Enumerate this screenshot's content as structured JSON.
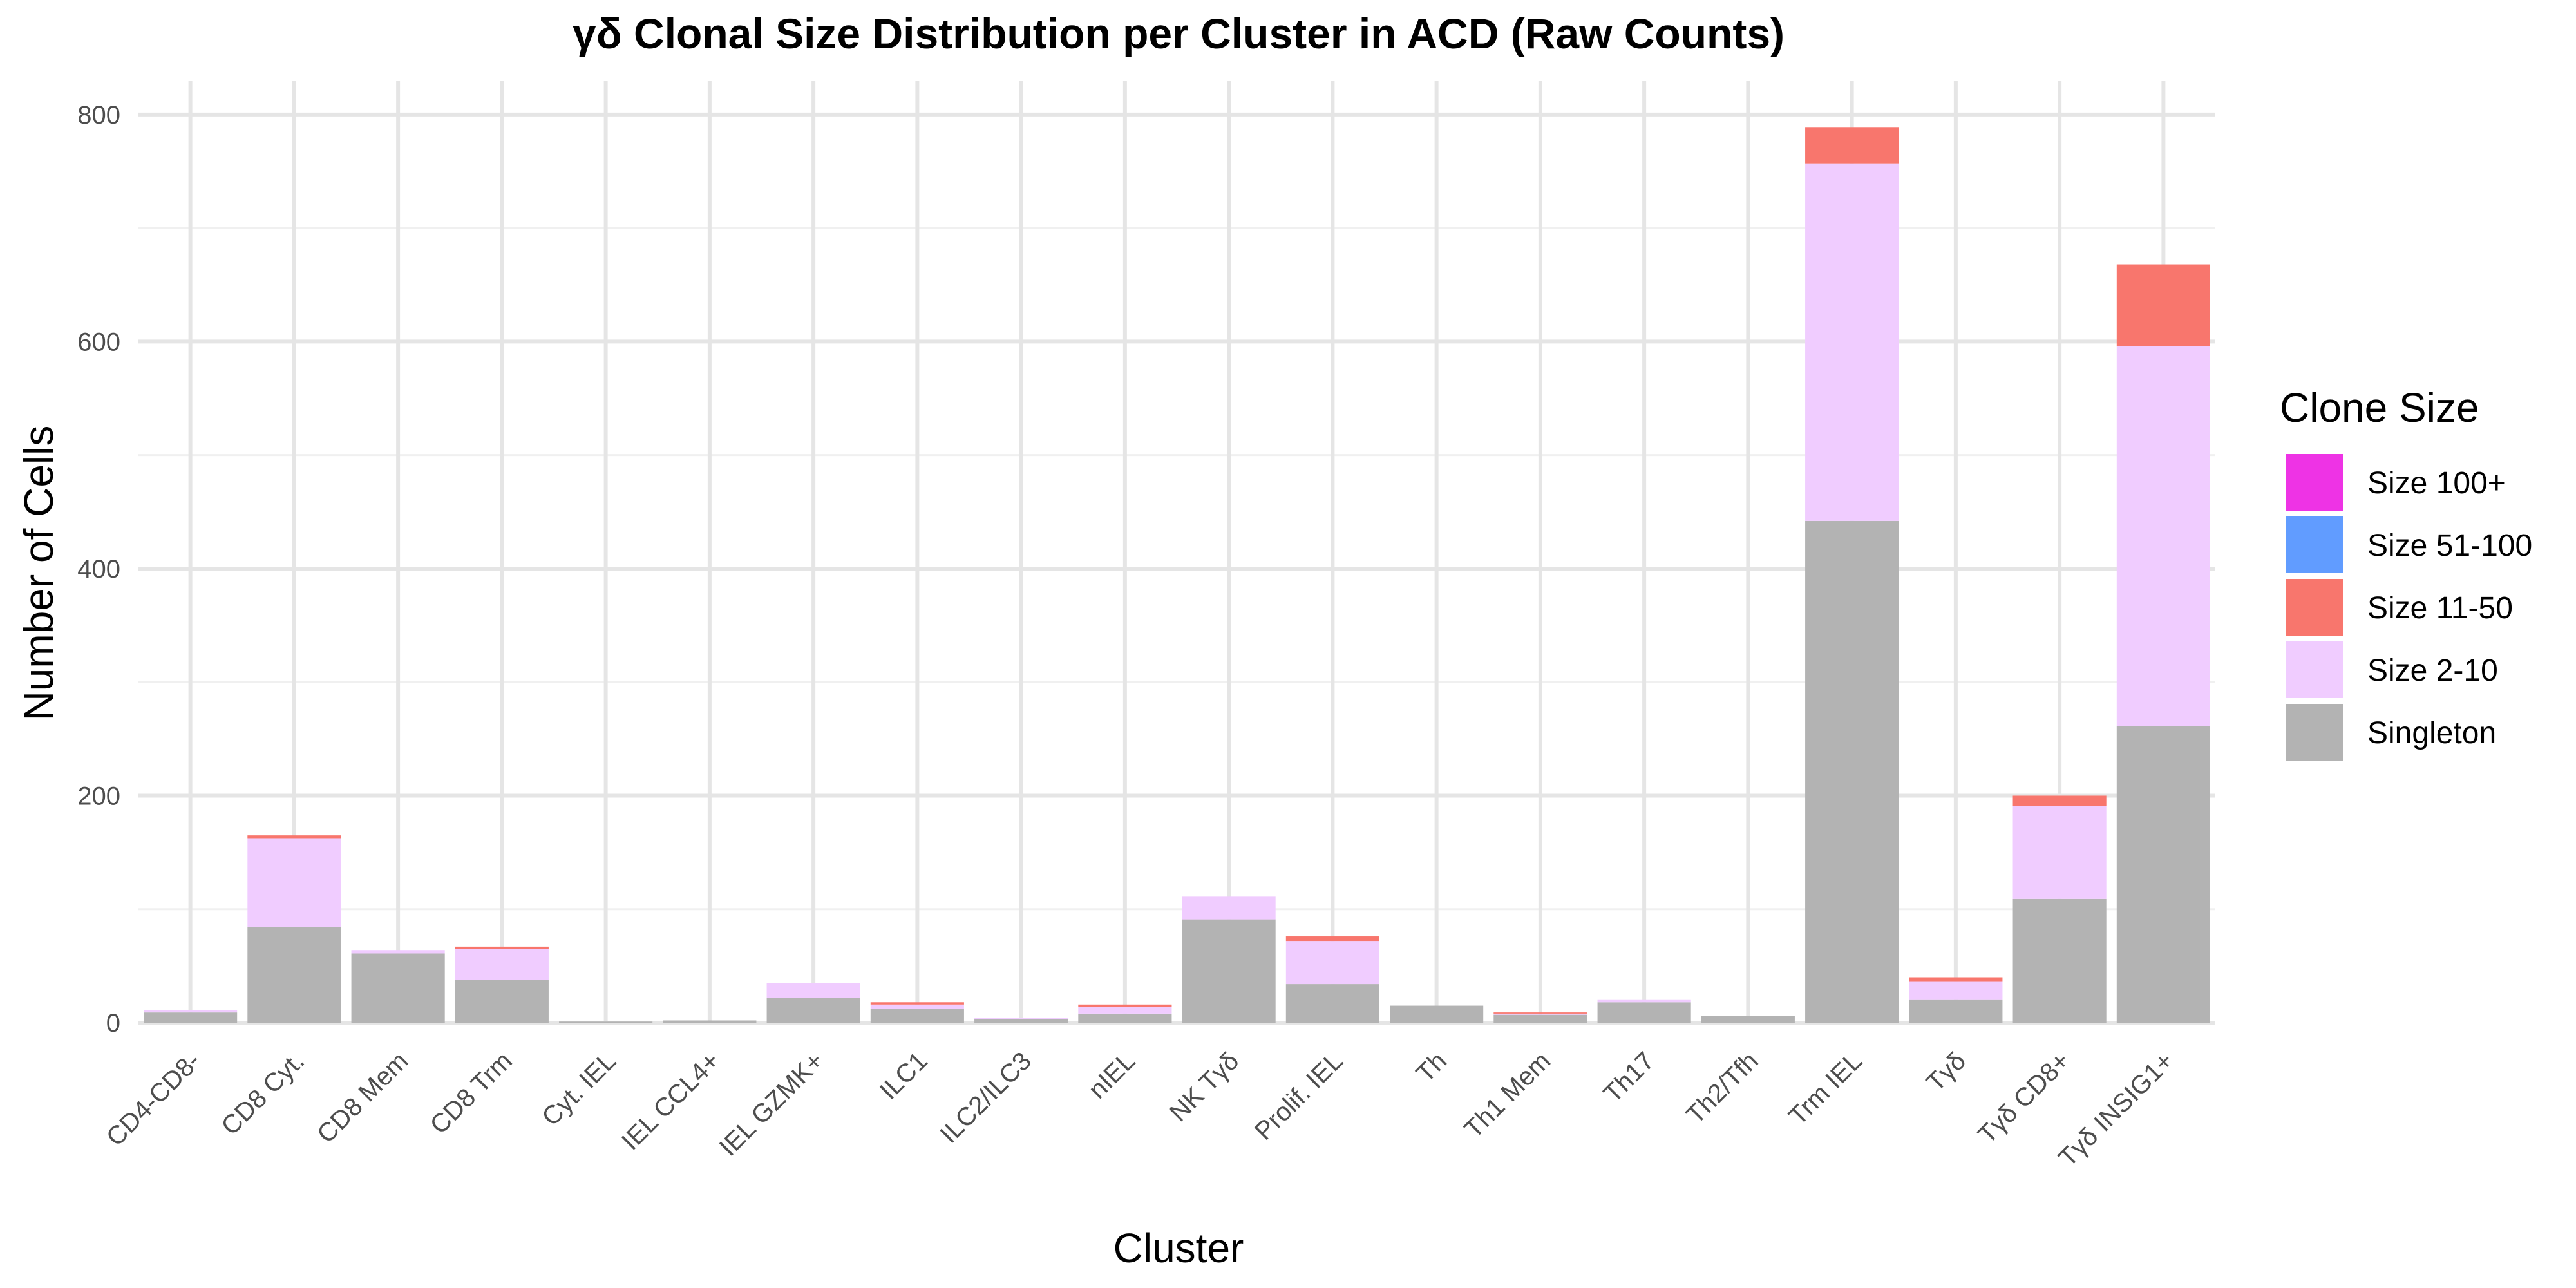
{
  "chart_data": {
    "type": "bar",
    "stacked": true,
    "title": "γδ Clonal Size Distribution per Cluster in ACD (Raw Counts)",
    "xlabel": "Cluster",
    "ylabel": "Number of Cells",
    "ylim": [
      0,
      830
    ],
    "yticks": [
      0,
      200,
      400,
      600,
      800
    ],
    "grid": true,
    "legend": {
      "title": "Clone Size",
      "placement": "right",
      "entries": [
        {
          "label": "Size 100+",
          "color": "#ee33e5"
        },
        {
          "label": "Size 51-100",
          "color": "#619cff"
        },
        {
          "label": "Size 11-50",
          "color": "#f8766d"
        },
        {
          "label": "Size 2-10",
          "color": "#f0ccff"
        },
        {
          "label": "Singleton",
          "color": "#b3b3b3"
        }
      ]
    },
    "categories": [
      "CD4-CD8-",
      "CD8 Cyt.",
      "CD8 Mem",
      "CD8 Trm",
      "Cyt. IEL",
      "IEL CCL4+",
      "IEL GZMK+",
      "ILC1",
      "ILC2/ILC3",
      "nIEL",
      "NK Tγδ",
      "Prolif. IEL",
      "Th",
      "Th1 Mem",
      "Th17",
      "Th2/Tfh",
      "Trm IEL",
      "Tγδ",
      "Tγδ CD8+",
      "Tγδ INSIG1+"
    ],
    "series": [
      {
        "name": "Singleton",
        "color": "#b3b3b3",
        "values": [
          9,
          84,
          61,
          38,
          1,
          2,
          22,
          12,
          3,
          8,
          91,
          34,
          15,
          7,
          18,
          6,
          442,
          20,
          109,
          261
        ]
      },
      {
        "name": "Size 2-10",
        "color": "#f0ccff",
        "values": [
          2,
          78,
          3,
          27,
          0,
          0,
          13,
          4,
          1,
          6,
          20,
          38,
          0,
          1,
          2,
          0,
          315,
          16,
          82,
          335
        ]
      },
      {
        "name": "Size 11-50",
        "color": "#f8766d",
        "values": [
          0,
          3,
          0,
          2,
          0,
          0,
          0,
          2,
          0,
          2,
          0,
          4,
          0,
          1,
          0,
          0,
          32,
          4,
          9,
          72
        ]
      },
      {
        "name": "Size 51-100",
        "color": "#619cff",
        "values": [
          0,
          0,
          0,
          0,
          0,
          0,
          0,
          0,
          0,
          0,
          0,
          0,
          0,
          0,
          0,
          0,
          0,
          0,
          0,
          0
        ]
      },
      {
        "name": "Size 100+",
        "color": "#ee33e5",
        "values": [
          0,
          0,
          0,
          0,
          0,
          0,
          0,
          0,
          0,
          0,
          0,
          0,
          0,
          0,
          0,
          0,
          0,
          0,
          0,
          0
        ]
      }
    ]
  }
}
